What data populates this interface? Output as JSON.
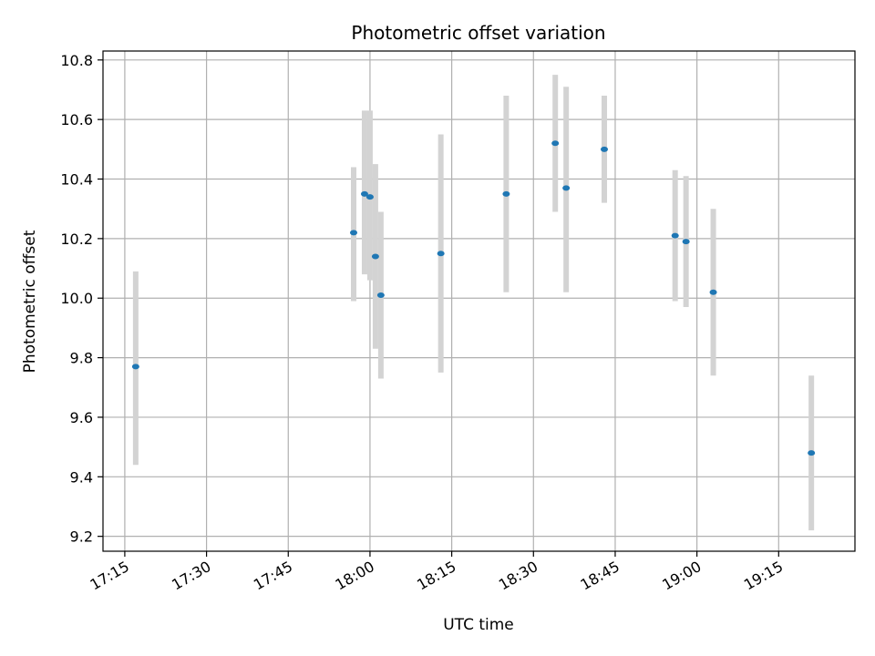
{
  "chart_data": {
    "type": "scatter",
    "title": "Photometric offset variation",
    "xlabel": "UTC time",
    "ylabel": "Photometric offset",
    "x_ticks": [
      "17:15",
      "17:30",
      "17:45",
      "18:00",
      "18:15",
      "18:30",
      "18:45",
      "19:00",
      "19:15"
    ],
    "y_ticks": [
      "9.2",
      "9.4",
      "9.6",
      "9.8",
      "10.0",
      "10.2",
      "10.4",
      "10.6",
      "10.8"
    ],
    "xlim": [
      "17:11",
      "19:29"
    ],
    "ylim": [
      9.15,
      10.83
    ],
    "grid": true,
    "colors": {
      "point": "#1f77b4",
      "errorbar": "#d3d3d3",
      "grid": "#b0b0b0",
      "axes": "#000000"
    },
    "series": [
      {
        "points": [
          {
            "x": "17:17",
            "y": 9.77,
            "err_low": 9.44,
            "err_high": 10.09
          },
          {
            "x": "17:57",
            "y": 10.22,
            "err_low": 9.99,
            "err_high": 10.44
          },
          {
            "x": "17:59",
            "y": 10.35,
            "err_low": 10.08,
            "err_high": 10.63
          },
          {
            "x": "18:00",
            "y": 10.34,
            "err_low": 10.06,
            "err_high": 10.63
          },
          {
            "x": "18:01",
            "y": 10.14,
            "err_low": 9.83,
            "err_high": 10.45
          },
          {
            "x": "18:02",
            "y": 10.01,
            "err_low": 9.73,
            "err_high": 10.29
          },
          {
            "x": "18:13",
            "y": 10.15,
            "err_low": 9.75,
            "err_high": 10.55
          },
          {
            "x": "18:25",
            "y": 10.35,
            "err_low": 10.02,
            "err_high": 10.68
          },
          {
            "x": "18:34",
            "y": 10.52,
            "err_low": 10.29,
            "err_high": 10.75
          },
          {
            "x": "18:36",
            "y": 10.37,
            "err_low": 10.02,
            "err_high": 10.71
          },
          {
            "x": "18:43",
            "y": 10.5,
            "err_low": 10.32,
            "err_high": 10.68
          },
          {
            "x": "18:56",
            "y": 10.21,
            "err_low": 9.99,
            "err_high": 10.43
          },
          {
            "x": "18:58",
            "y": 10.19,
            "err_low": 9.97,
            "err_high": 10.41
          },
          {
            "x": "19:03",
            "y": 10.02,
            "err_low": 9.74,
            "err_high": 10.3
          },
          {
            "x": "19:21",
            "y": 9.48,
            "err_low": 9.22,
            "err_high": 9.74
          }
        ]
      }
    ]
  }
}
